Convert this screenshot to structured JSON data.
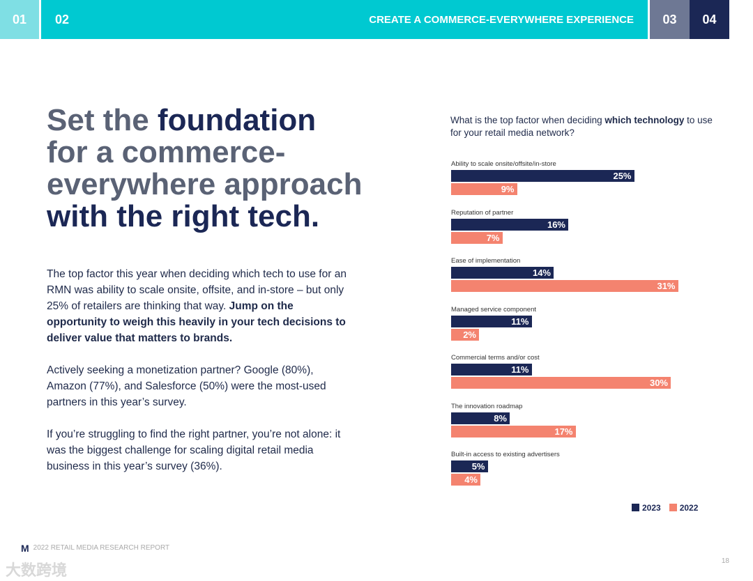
{
  "nav": {
    "tab1": "01",
    "tab2": "02",
    "section": "CREATE A COMMERCE-EVERYWHERE  EXPERIENCE",
    "tab3": "03",
    "tab4": "04"
  },
  "headline": {
    "part1": "Set the ",
    "emph1": "foundation",
    "part2": " for a commerce-everywhere approach ",
    "emph2": "with the right tech."
  },
  "body": {
    "p1": "The top factor this year when deciding which tech to use for an RMN was ability to scale onsite, offsite, and in-store – but only 25% of retailers are thinking that way. ",
    "p1_bold": "Jump on the opportunity to weigh this heavily in your tech decisions to deliver value that matters to brands.",
    "p2": "Actively seeking a monetization partner? Google (80%), Amazon (77%), and Salesforce (50%) were the most-used partners in this year’s survey.",
    "p3": "If you’re struggling to find the right partner, you’re not alone: it was the biggest challenge for scaling digital retail media business in this year’s survey (36%)."
  },
  "chart_data": {
    "type": "bar",
    "title_part1": "What is the top factor when deciding ",
    "title_bold": "which technology",
    "title_part2": " to use for your retail media network?",
    "categories": [
      "Ability to scale onsite/offsite/in-store",
      "Reputation of partner",
      "Ease of implementation",
      "Managed service component",
      "Commercial terms and/or cost",
      "The innovation roadmap",
      "Built-in access to existing advertisers"
    ],
    "series": [
      {
        "name": "2023",
        "color": "#1b2755",
        "values": [
          25,
          16,
          14,
          11,
          11,
          8,
          5
        ]
      },
      {
        "name": "2022",
        "color": "#f4836f",
        "values": [
          9,
          7,
          31,
          2,
          30,
          17,
          4
        ]
      }
    ],
    "unit": "%",
    "legend": "bottom-right"
  },
  "footer": {
    "logo": "M",
    "report": "2022 RETAIL MEDIA RESEARCH REPORT",
    "page": "18",
    "watermark": "大数跨境"
  }
}
